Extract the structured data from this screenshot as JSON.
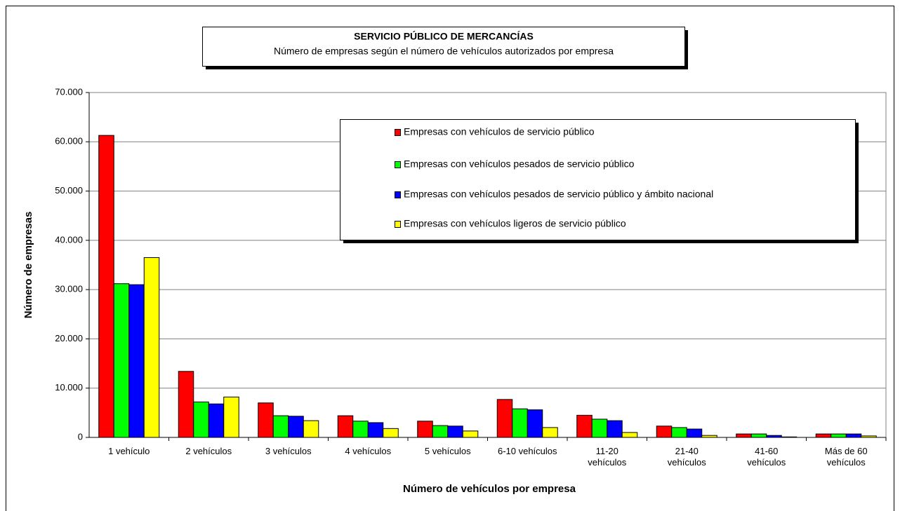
{
  "chart_data": {
    "type": "bar",
    "title": "SERVICIO PÚBLICO DE MERCANCÍAS",
    "subtitle": "Número de empresas según el número de vehículos  autorizados por empresa",
    "x_label": "Número de vehículos por empresa",
    "y_label": "Número de empresas",
    "categories": [
      "1 vehículo",
      "2 vehículos",
      "3 vehículos",
      "4 vehículos",
      "5 vehículos",
      "6-10 vehículos",
      "11-20\nvehículos",
      "21-40\nvehículos",
      "41-60\nvehículos",
      "Más de 60\nvehículos"
    ],
    "series": [
      {
        "name": "Empresas con vehículos de servicio público",
        "color": "#ff0000",
        "values": [
          61300,
          13400,
          7000,
          4400,
          3300,
          7700,
          4500,
          2300,
          700,
          700
        ]
      },
      {
        "name": "Empresas con vehículos pesados de servicio público",
        "color": "#00ff00",
        "values": [
          31200,
          7200,
          4400,
          3300,
          2400,
          5800,
          3700,
          2000,
          700,
          700
        ]
      },
      {
        "name": "Empresas con vehículos pesados de servicio público y ámbito nacional",
        "color": "#0000ff",
        "values": [
          31000,
          6800,
          4300,
          3000,
          2300,
          5600,
          3400,
          1700,
          400,
          700
        ]
      },
      {
        "name": "Empresas con vehículos ligeros de servicio público",
        "color": "#ffff00",
        "values": [
          36500,
          8200,
          3400,
          1800,
          1300,
          2000,
          1000,
          400,
          100,
          300
        ]
      }
    ],
    "ylim": [
      0,
      70000
    ],
    "yticks": [
      0,
      {
        "value": 10000,
        "label": "10.000"
      },
      {
        "value": 20000,
        "label": "20.000"
      },
      {
        "value": 30000,
        "label": "30.000"
      },
      {
        "value": 40000,
        "label": "40.000"
      },
      {
        "value": 50000,
        "label": "50.000"
      },
      {
        "value": 60000,
        "label": "60.000"
      },
      {
        "value": 70000,
        "label": "70.000"
      }
    ],
    "grid": true
  }
}
